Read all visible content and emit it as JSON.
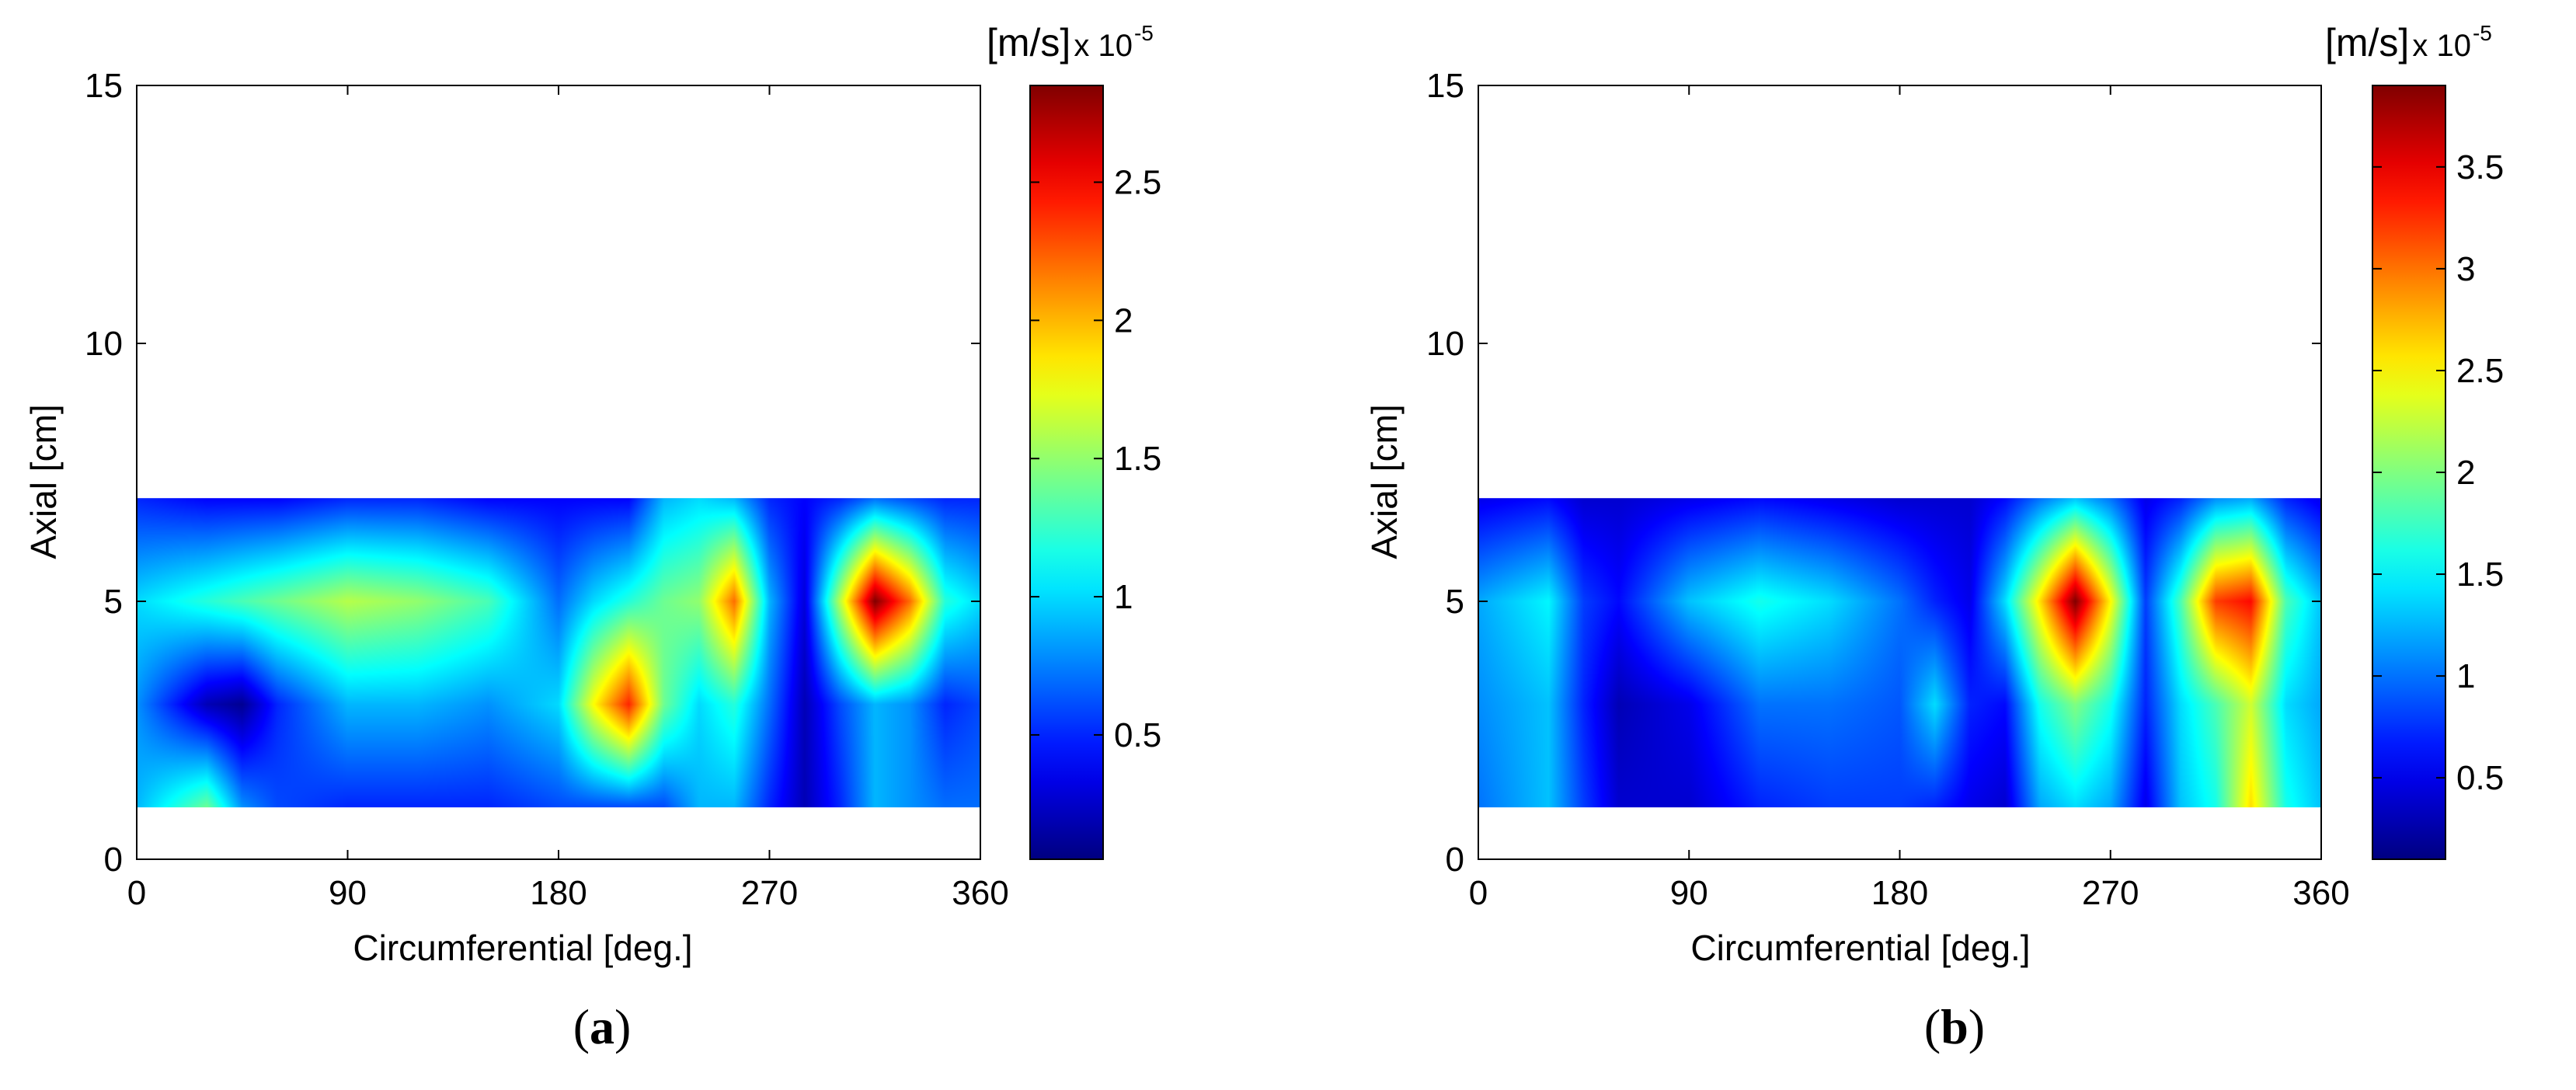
{
  "chart_data": [
    {
      "type": "heatmap",
      "panel": "a",
      "caption": "a",
      "xlabel": "Circumferential [deg.]",
      "ylabel": "Axial [cm]",
      "xlim": [
        0,
        360
      ],
      "ylim": [
        0,
        15
      ],
      "xticks": [
        "0",
        "90",
        "180",
        "270",
        "360"
      ],
      "yticks": [
        "0",
        "5",
        "10",
        "15"
      ],
      "colorbar": {
        "unit": "[m/s]",
        "multiplier": "x 10",
        "exponent": "-5",
        "range": [
          0.05,
          2.85
        ],
        "ticks": [
          "0.5",
          "1",
          "1.5",
          "2",
          "2.5"
        ],
        "colormap": "jet"
      },
      "grid": false,
      "x": [
        0,
        30,
        45,
        60,
        90,
        120,
        150,
        180,
        195,
        210,
        225,
        240,
        255,
        270,
        285,
        300,
        315,
        330,
        345,
        360
      ],
      "y": [
        1,
        3,
        5,
        7
      ],
      "z": [
        [
          0.9,
          1.4,
          0.8,
          0.6,
          0.5,
          0.5,
          0.5,
          0.6,
          0.6,
          0.6,
          0.6,
          0.9,
          0.9,
          0.5,
          0.2,
          0.5,
          0.9,
          0.8,
          0.7,
          0.7
        ],
        [
          0.8,
          0.2,
          0.1,
          0.5,
          0.9,
          0.9,
          0.8,
          1.0,
          1.8,
          2.4,
          1.4,
          1.0,
          1.2,
          0.7,
          0.2,
          0.6,
          0.9,
          0.8,
          0.5,
          0.6
        ],
        [
          1.0,
          1.2,
          1.3,
          1.4,
          1.6,
          1.5,
          1.3,
          0.7,
          1.0,
          1.2,
          1.4,
          1.5,
          2.2,
          0.9,
          0.3,
          1.6,
          2.85,
          2.2,
          1.2,
          1.0
        ],
        [
          0.5,
          0.4,
          0.4,
          0.4,
          0.5,
          0.5,
          0.4,
          0.4,
          0.4,
          0.4,
          0.9,
          1.0,
          0.9,
          0.5,
          0.4,
          0.5,
          0.7,
          0.6,
          0.5,
          0.5
        ]
      ]
    },
    {
      "type": "heatmap",
      "panel": "b",
      "caption": "b",
      "xlabel": "Circumferential [deg.]",
      "ylabel": "Axial [cm]",
      "xlim": [
        0,
        360
      ],
      "ylim": [
        0,
        15
      ],
      "xticks": [
        "0",
        "90",
        "180",
        "270",
        "360"
      ],
      "yticks": [
        "0",
        "5",
        "10",
        "15"
      ],
      "colorbar": {
        "unit": "[m/s]",
        "multiplier": "x 10",
        "exponent": "-5",
        "range": [
          0.1,
          3.9
        ],
        "ticks": [
          "0.5",
          "1",
          "1.5",
          "2",
          "2.5",
          "3",
          "3.5"
        ],
        "colormap": "jet"
      },
      "grid": false,
      "x": [
        0,
        30,
        45,
        60,
        90,
        120,
        150,
        180,
        195,
        210,
        225,
        240,
        255,
        270,
        285,
        300,
        315,
        330,
        345,
        360
      ],
      "y": [
        1,
        3,
        5,
        7
      ],
      "z": [
        [
          1.0,
          1.3,
          0.8,
          0.4,
          0.4,
          0.7,
          0.8,
          0.8,
          0.7,
          0.5,
          0.4,
          1.2,
          1.4,
          1.2,
          0.5,
          1.3,
          1.6,
          2.6,
          1.6,
          1.3
        ],
        [
          1.1,
          1.3,
          0.7,
          0.3,
          0.5,
          1.0,
          1.0,
          0.9,
          1.4,
          0.7,
          0.6,
          1.6,
          2.0,
          1.6,
          0.7,
          1.4,
          1.8,
          2.3,
          1.4,
          1.2
        ],
        [
          1.2,
          1.5,
          0.8,
          0.6,
          1.3,
          1.6,
          1.4,
          1.0,
          0.7,
          0.5,
          1.4,
          2.6,
          3.9,
          2.5,
          0.8,
          1.8,
          3.2,
          3.4,
          1.8,
          1.3
        ],
        [
          0.5,
          0.6,
          0.4,
          0.4,
          0.5,
          0.6,
          0.5,
          0.4,
          0.4,
          0.4,
          0.6,
          1.0,
          1.3,
          1.0,
          0.5,
          0.7,
          1.1,
          1.2,
          0.7,
          0.5
        ]
      ]
    }
  ]
}
